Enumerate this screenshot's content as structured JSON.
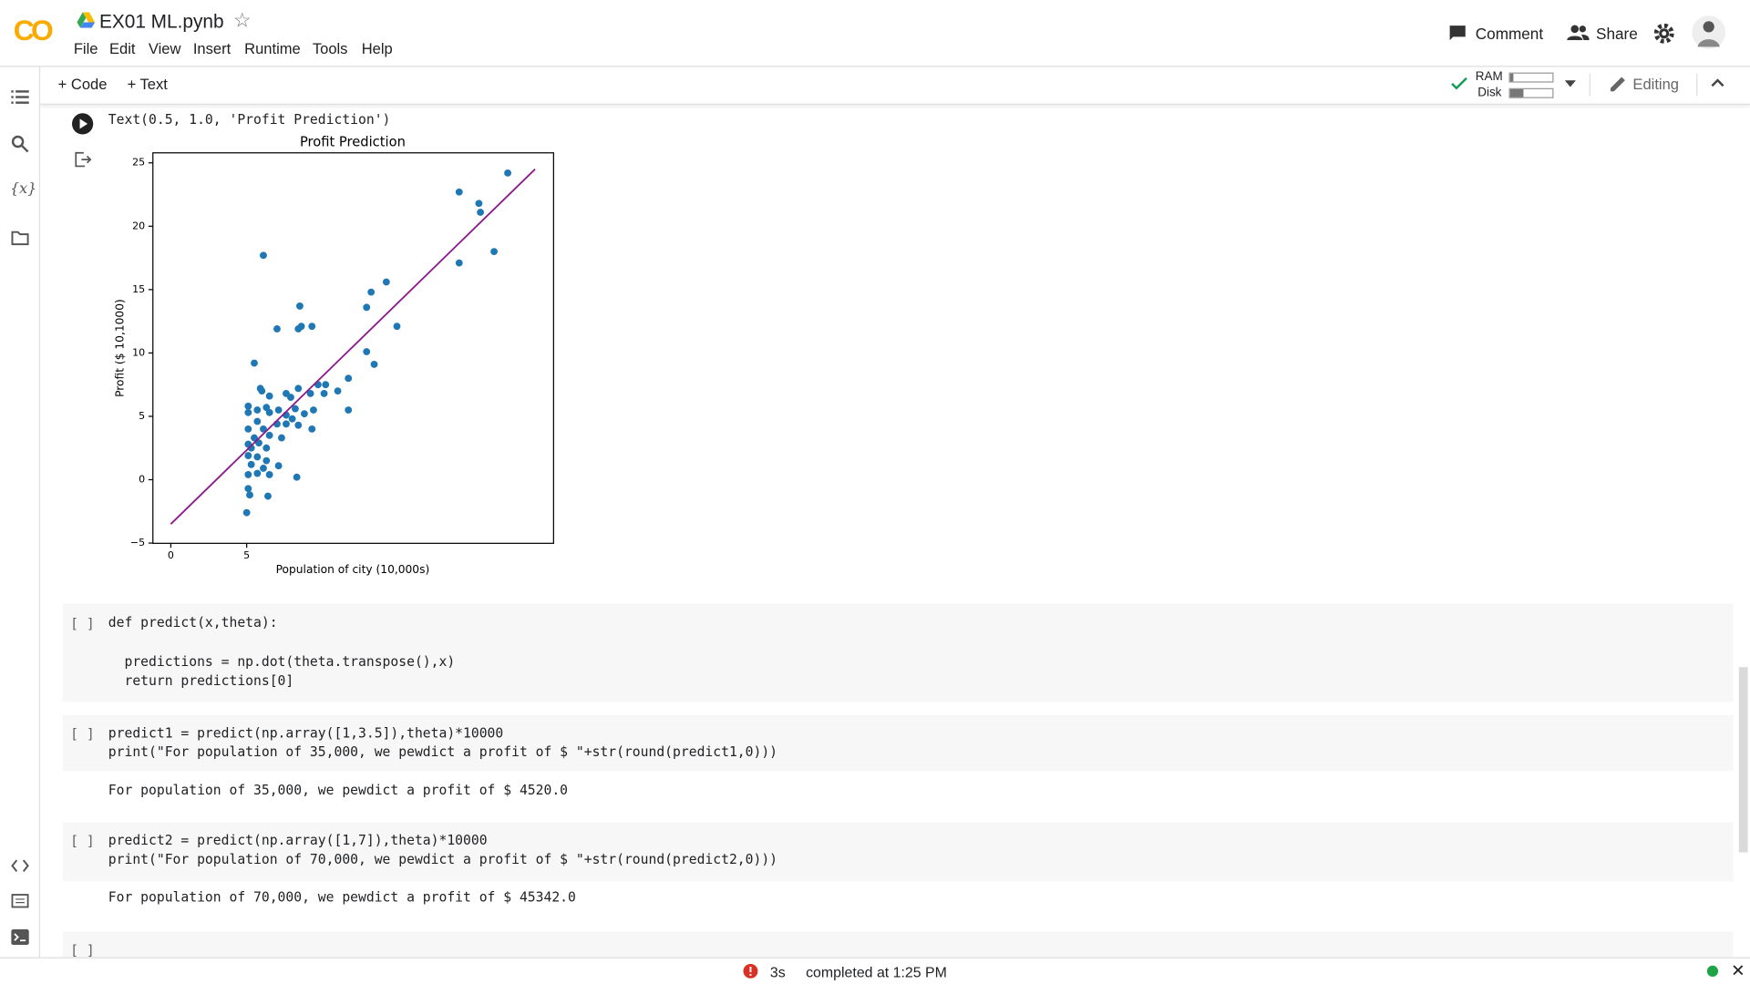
{
  "header": {
    "logo": "CO",
    "title": "EX01 ML.pynb",
    "menu": [
      "File",
      "Edit",
      "View",
      "Insert",
      "Runtime",
      "Tools",
      "Help"
    ],
    "comment": "Comment",
    "share": "Share"
  },
  "toolbar": {
    "code": "+ Code",
    "text": "+ Text",
    "ram": "RAM",
    "disk": "Disk",
    "editing": "Editing"
  },
  "output_cell": {
    "text": "Text(0.5, 1.0, 'Profit Prediction')"
  },
  "chart_data": {
    "type": "scatter",
    "title": "Profit Prediction",
    "xlabel": "Population of city (10,000s)",
    "ylabel": "Profit ($ 10,1000)",
    "xlim": [
      -1.18,
      25.22
    ],
    "ylim": [
      -5.02,
      25.79
    ],
    "xticks": [
      0,
      5
    ],
    "yticks": [
      {
        "value": -5,
        "label": "−5"
      },
      0,
      5,
      10,
      15,
      20,
      25
    ],
    "series": [
      {
        "color": "#1f77b4",
        "style": "points",
        "x": [
          22.2,
          19.0,
          20.3,
          20.4,
          21.3,
          19.0,
          6.1,
          14.2,
          13.2,
          12.9,
          14.9,
          8.5,
          9.3,
          8.6,
          8.4,
          7.0,
          12.9,
          13.4,
          5.5,
          11.7,
          11.0,
          10.2,
          10.1,
          11.7,
          5.9,
          6.0,
          8.4,
          7.6,
          7.9,
          9.2,
          9.7,
          6.5,
          5.1,
          5.1,
          5.7,
          6.3,
          6.5,
          7.1,
          7.6,
          8.2,
          8.8,
          9.4,
          7.0,
          7.6,
          8.0,
          8.4,
          9.3,
          5.7,
          6.1,
          5.1,
          5.5,
          6.5,
          7.3,
          5.1,
          5.8,
          5.3,
          6.3,
          5.1,
          5.7,
          6.3,
          5.3,
          6.1,
          7.1,
          5.1,
          5.7,
          6.5,
          8.3,
          5.1,
          5.2,
          6.4,
          5.0
        ],
        "values": [
          24.2,
          22.7,
          21.8,
          21.1,
          18.0,
          17.1,
          17.7,
          15.6,
          14.8,
          13.6,
          12.1,
          13.7,
          12.1,
          12.1,
          11.9,
          11.9,
          10.1,
          9.1,
          9.2,
          8.0,
          7.0,
          7.5,
          6.8,
          5.5,
          7.2,
          7.0,
          7.2,
          6.8,
          6.5,
          6.8,
          7.5,
          6.6,
          5.8,
          5.3,
          5.5,
          5.7,
          5.3,
          5.5,
          5.1,
          5.6,
          5.2,
          5.5,
          4.4,
          4.4,
          4.8,
          4.3,
          4.0,
          4.6,
          4.0,
          4.0,
          3.3,
          3.5,
          3.3,
          2.8,
          2.9,
          2.5,
          2.5,
          1.9,
          1.8,
          1.5,
          1.2,
          0.9,
          1.1,
          0.4,
          0.5,
          0.4,
          0.2,
          -0.7,
          -1.2,
          -1.3,
          -2.6
        ]
      },
      {
        "color": "#8b1a8b",
        "style": "line",
        "x": [
          0,
          24
        ],
        "values": [
          -3.5,
          24.5
        ]
      }
    ]
  },
  "cells": [
    {
      "prompt": "[ ]",
      "lines": [
        "def predict(x,theta):",
        "  predictions = np.dot(theta.transpose(),x)",
        "  return predictions[0]"
      ]
    },
    {
      "prompt": "[ ]",
      "lines": [
        "predict1 = predict(np.array([1,3.5]),theta)*10000",
        "print(\"For population of 35,000, we pewdict a profit of $ \"+str(round(predict1,0)))"
      ],
      "output": "For population of 35,000, we pewdict a profit of $ 4520.0"
    },
    {
      "prompt": "[ ]",
      "lines": [
        "predict2 = predict(np.array([1,7]),theta)*10000",
        "print(\"For population of 70,000, we pewdict a profit of $ \"+str(round(predict2,0)))"
      ],
      "output": "For population of 70,000, we pewdict a profit of $ 45342.0"
    },
    {
      "prompt": "[ ]"
    }
  ],
  "status": {
    "time": "3s",
    "message": "completed at 1:25 PM"
  }
}
